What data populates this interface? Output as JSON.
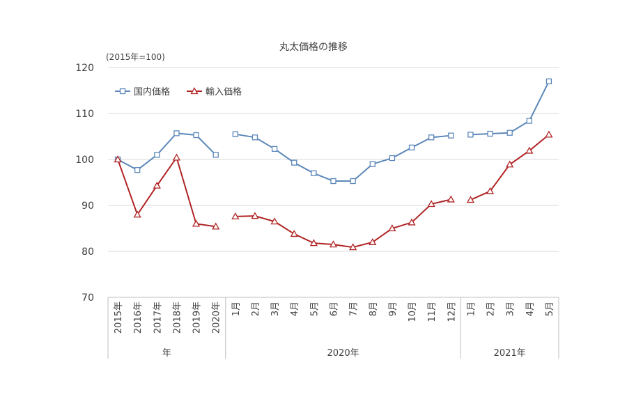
{
  "chart_data": {
    "type": "line",
    "title": "丸太価格の推移",
    "unit_note": "(2015年=100)",
    "ylim": [
      70,
      120
    ],
    "yticks": [
      "70",
      "80",
      "90",
      "100",
      "110",
      "120"
    ],
    "grid": true,
    "legend_position": "top-left",
    "categories": [
      "2015年",
      "2016年",
      "2017年",
      "2018年",
      "2019年",
      "2020年",
      "1月",
      "2月",
      "3月",
      "4月",
      "5月",
      "6月",
      "7月",
      "8月",
      "9月",
      "10月",
      "11月",
      "12月",
      "1月",
      "2月",
      "3月",
      "4月",
      "5月"
    ],
    "groups": [
      {
        "label": "年",
        "start": 0,
        "end": 5
      },
      {
        "label": "2020年",
        "start": 6,
        "end": 17
      },
      {
        "label": "2021年",
        "start": 18,
        "end": 22
      }
    ],
    "series": [
      {
        "name": "国内価格",
        "color": "#5b87b9",
        "marker": "square",
        "values": [
          100,
          97.7,
          101,
          105.7,
          105.3,
          101,
          105.5,
          104.8,
          102.3,
          99.3,
          97,
          95.3,
          95.3,
          99,
          100.3,
          102.6,
          104.8,
          105.2,
          105.4,
          105.6,
          105.8,
          108.4,
          117
        ]
      },
      {
        "name": "輸入価格",
        "color": "#b02424",
        "marker": "triangle",
        "values": [
          100,
          88,
          94.3,
          100.4,
          86,
          85.4,
          87.6,
          87.7,
          86.5,
          83.8,
          81.8,
          81.5,
          80.9,
          82,
          85,
          86.3,
          90.3,
          91.3,
          91.2,
          93.1,
          98.9,
          101.9,
          105.4
        ]
      }
    ]
  }
}
